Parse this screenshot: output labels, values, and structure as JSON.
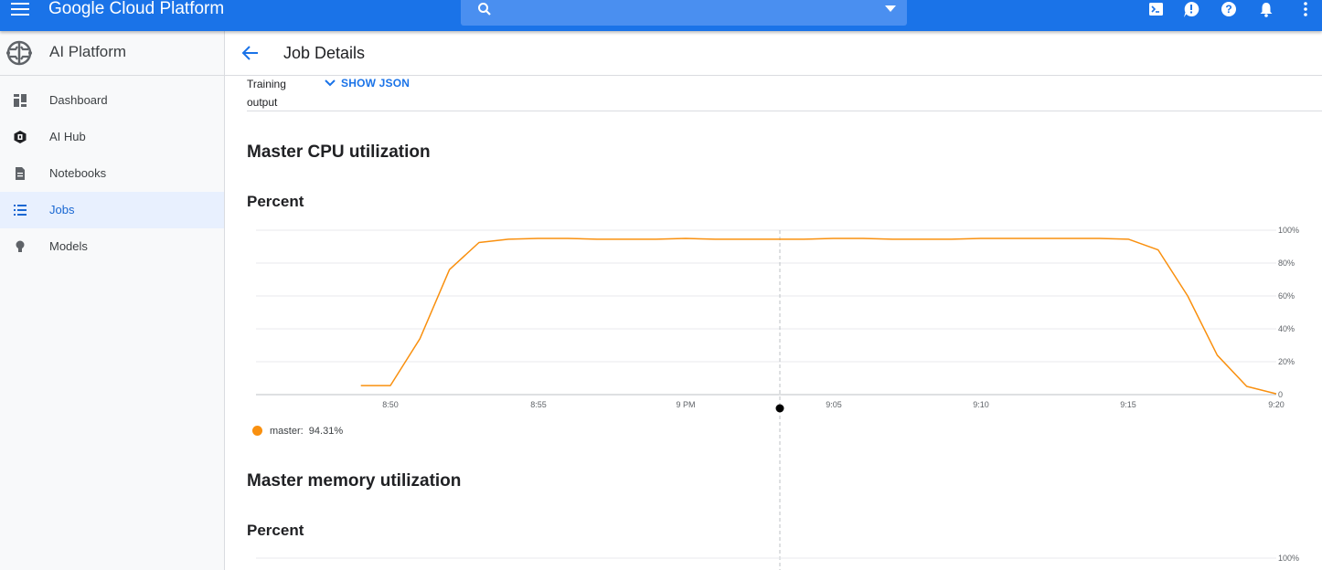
{
  "topbar": {
    "brand": "Google Cloud Platform",
    "search_value": "",
    "icons": [
      "menu-icon",
      "search-icon",
      "dropdown-caret-icon",
      "cloud-shell-icon",
      "feedback-icon",
      "help-icon",
      "notifications-icon",
      "more-vert-icon"
    ]
  },
  "sidebar": {
    "product": "AI Platform",
    "items": [
      {
        "label": "Dashboard",
        "icon": "dashboard-icon",
        "active": false
      },
      {
        "label": "AI Hub",
        "icon": "ai-hub-icon",
        "active": false
      },
      {
        "label": "Notebooks",
        "icon": "notebook-icon",
        "active": false
      },
      {
        "label": "Jobs",
        "icon": "list-icon",
        "active": true
      },
      {
        "label": "Models",
        "icon": "lightbulb-icon",
        "active": false
      }
    ]
  },
  "page": {
    "title": "Job Details",
    "training_output_label": "Training output",
    "show_json_label": "SHOW JSON"
  },
  "charts": {
    "cpu": {
      "section_title": "Master CPU utilization",
      "unit_title": "Percent"
    },
    "memory": {
      "section_title": "Master memory utilization",
      "unit_title": "Percent"
    }
  },
  "colors": {
    "accent": "#1a73e8",
    "series": "#f9900f"
  },
  "chart_data": [
    {
      "type": "line",
      "title": "Master CPU utilization",
      "ylabel": "Percent",
      "ylim": [
        0,
        100
      ],
      "y_ticks": [
        "0",
        "20%",
        "40%",
        "60%",
        "80%",
        "100%"
      ],
      "x_ticks": [
        "8:50",
        "8:55",
        "9 PM",
        "9:05",
        "9:10",
        "9:15",
        "9:20"
      ],
      "series": [
        {
          "name": "master",
          "x": [
            "8:49",
            "8:50",
            "8:51",
            "8:52",
            "8:53",
            "8:54",
            "8:55",
            "8:56",
            "8:57",
            "8:58",
            "8:59",
            "9:00",
            "9:01",
            "9:02",
            "9:03",
            "9:04",
            "9:05",
            "9:06",
            "9:07",
            "9:08",
            "9:09",
            "9:10",
            "9:11",
            "9:12",
            "9:13",
            "9:14",
            "9:15",
            "9:16",
            "9:17",
            "9:18",
            "9:19",
            "9:20"
          ],
          "values": [
            5.5,
            5.5,
            34,
            76,
            92.5,
            94.5,
            95,
            95,
            94.5,
            94.5,
            94.5,
            95,
            94.5,
            94.5,
            94.5,
            94.5,
            95,
            95,
            94.5,
            94.5,
            94.5,
            95,
            95,
            95,
            95,
            95,
            94.5,
            88,
            60,
            24,
            5,
            0.5
          ]
        }
      ],
      "legend": [
        {
          "name": "master",
          "value": "94.31%"
        }
      ],
      "grid": true
    },
    {
      "type": "line",
      "title": "Master memory utilization",
      "ylabel": "Percent",
      "y_ticks": [
        "100%"
      ],
      "series": []
    }
  ]
}
